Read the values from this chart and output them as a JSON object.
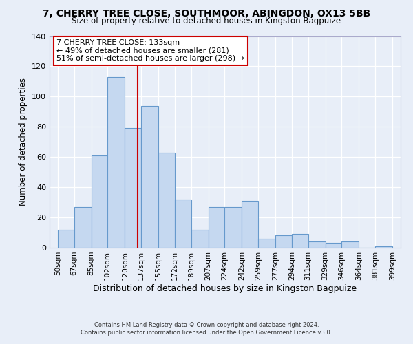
{
  "title1": "7, CHERRY TREE CLOSE, SOUTHMOOR, ABINGDON, OX13 5BB",
  "title2": "Size of property relative to detached houses in Kingston Bagpuize",
  "xlabel": "Distribution of detached houses by size in Kingston Bagpuize",
  "ylabel": "Number of detached properties",
  "footer1": "Contains HM Land Registry data © Crown copyright and database right 2024.",
  "footer2": "Contains public sector information licensed under the Open Government Licence v3.0.",
  "bin_edges": [
    50,
    67,
    85,
    102,
    120,
    137,
    155,
    172,
    189,
    207,
    224,
    242,
    259,
    277,
    294,
    311,
    329,
    346,
    364,
    381,
    399
  ],
  "bin_labels": [
    "50sqm",
    "67sqm",
    "85sqm",
    "102sqm",
    "120sqm",
    "137sqm",
    "155sqm",
    "172sqm",
    "189sqm",
    "207sqm",
    "224sqm",
    "242sqm",
    "259sqm",
    "277sqm",
    "294sqm",
    "311sqm",
    "329sqm",
    "346sqm",
    "364sqm",
    "381sqm",
    "399sqm"
  ],
  "counts": [
    12,
    27,
    61,
    113,
    79,
    94,
    63,
    32,
    12,
    27,
    27,
    31,
    6,
    8,
    9,
    4,
    3,
    4,
    0,
    1
  ],
  "bar_color": "#c5d8f0",
  "bar_edge_color": "#6699cc",
  "vline_x": 133,
  "vline_color": "#cc0000",
  "annotation_title": "7 CHERRY TREE CLOSE: 133sqm",
  "annotation_line1": "← 49% of detached houses are smaller (281)",
  "annotation_line2": "51% of semi-detached houses are larger (298) →",
  "annotation_box_color": "white",
  "annotation_box_edge_color": "#cc0000",
  "ylim": [
    0,
    140
  ],
  "yticks": [
    0,
    20,
    40,
    60,
    80,
    100,
    120,
    140
  ],
  "bg_color": "#e8eef8",
  "plot_bg_color": "#e8eef8",
  "grid_color": "white",
  "spine_color": "#aaaacc"
}
